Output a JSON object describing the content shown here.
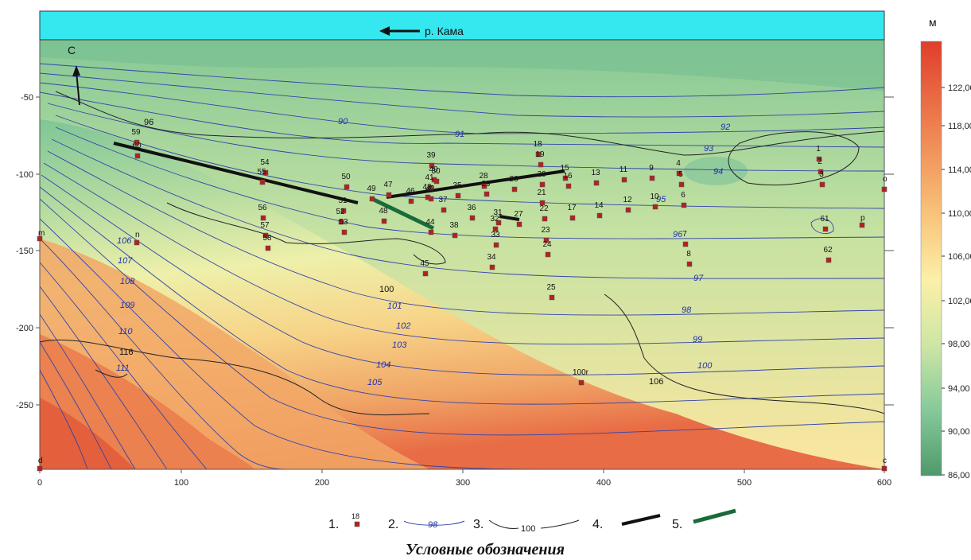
{
  "map": {
    "river_label": "р. Кама",
    "north_label": "С",
    "unit_label": "м",
    "x_ticks": [
      "0",
      "100",
      "200",
      "300",
      "400",
      "500",
      "600"
    ],
    "y_ticks": [
      "-50",
      "-100",
      "-150",
      "-200",
      "-250"
    ],
    "corner_labels": [
      "m",
      "n",
      "o",
      "p",
      "d",
      "c"
    ],
    "blue_iso_labels": [
      "90",
      "91",
      "92",
      "93",
      "94",
      "95",
      "96",
      "97",
      "98",
      "99",
      "100",
      "101",
      "102",
      "103",
      "104",
      "105",
      "106",
      "107",
      "108",
      "109",
      "110",
      "111"
    ],
    "black_iso_labels": [
      "96",
      "106",
      "116",
      "100"
    ]
  },
  "wells": [
    "1",
    "2",
    "3",
    "4",
    "5",
    "6",
    "7",
    "8",
    "9",
    "10",
    "11",
    "12",
    "13",
    "14",
    "15",
    "16",
    "17",
    "18",
    "19",
    "20",
    "21",
    "22",
    "23",
    "24",
    "25",
    "26",
    "27",
    "28",
    "29",
    "30",
    "31",
    "32",
    "33",
    "34",
    "35",
    "36",
    "37",
    "38",
    "39",
    "40",
    "41",
    "42",
    "43",
    "44",
    "45",
    "46",
    "47",
    "48",
    "49",
    "50",
    "51",
    "52",
    "53",
    "54",
    "55",
    "56",
    "57",
    "58",
    "59",
    "60",
    "61",
    "62",
    "100r"
  ],
  "scale": {
    "values": [
      "122,00",
      "118,00",
      "114,00",
      "110,00",
      "106,00",
      "102,00",
      "98,00",
      "94,00",
      "90,00",
      "86,00"
    ],
    "colors": [
      "#e3492f",
      "#ec7a4c",
      "#f2a05e",
      "#f7c37c",
      "#fbe39b",
      "#f4f3b2",
      "#cfe6a4",
      "#9fd5a0",
      "#6cbe96",
      "#4e9e6f"
    ]
  },
  "legend": {
    "items": [
      {
        "num": "1.",
        "sample": "18"
      },
      {
        "num": "2.",
        "sample": "98"
      },
      {
        "num": "3.",
        "sample": "100"
      },
      {
        "num": "4.",
        "sample": ""
      },
      {
        "num": "5.",
        "sample": ""
      }
    ],
    "title": "Условные обозначения"
  }
}
